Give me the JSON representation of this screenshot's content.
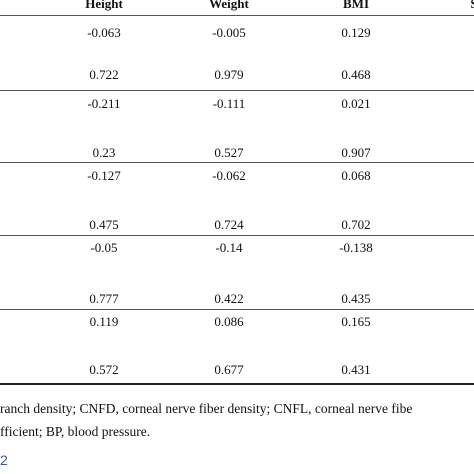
{
  "header": {
    "columns": [
      "Height",
      "Weight",
      "BMI",
      "S"
    ]
  },
  "table": {
    "rows": [
      [
        "-0.063",
        "-0.005",
        "0.129"
      ],
      [
        "0.722",
        "0.979",
        "0.468"
      ],
      [
        "-0.211",
        "-0.111",
        "0.021"
      ],
      [
        "0.23",
        "0.527",
        "0.907"
      ],
      [
        "-0.127",
        "-0.062",
        "0.068"
      ],
      [
        "0.475",
        "0.724",
        "0.702"
      ],
      [
        "-0.05",
        "-0.14",
        "-0.138"
      ],
      [
        "0.777",
        "0.422",
        "0.435"
      ],
      [
        "0.119",
        "0.086",
        "0.165"
      ],
      [
        "0.572",
        "0.677",
        "0.431"
      ]
    ]
  },
  "footnote": [
    "ranch density; CNFD, corneal nerve fiber density; CNFL, corneal nerve fibe",
    "fficient; BP, blood pressure."
  ],
  "link": "2"
}
